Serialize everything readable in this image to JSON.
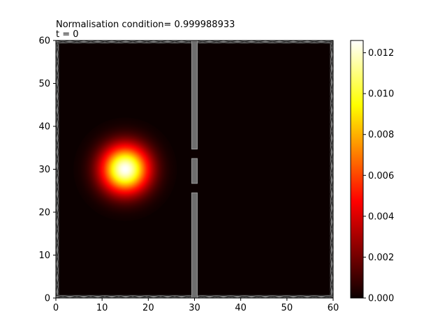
{
  "chart_data": {
    "type": "heatmap",
    "title_line1": "Normalisation condition= 0.999988933",
    "title_line2": "t = 0",
    "xlim": [
      0,
      60
    ],
    "ylim": [
      0,
      60
    ],
    "x_ticks": [
      0,
      10,
      20,
      30,
      40,
      50,
      60
    ],
    "y_ticks": [
      0,
      10,
      20,
      30,
      40,
      50,
      60
    ],
    "x_tick_labels": [
      "0",
      "10",
      "20",
      "30",
      "40",
      "50",
      "60"
    ],
    "y_tick_labels": [
      "0",
      "10",
      "20",
      "30",
      "40",
      "50",
      "60"
    ],
    "colormap": "hot",
    "grid": false,
    "packet": {
      "center_x": 15,
      "center_y": 30,
      "sigma": 3.5,
      "peak": 0.0126
    },
    "walls": [
      {
        "name": "wall-left",
        "x0": 0,
        "x1": 0.6,
        "y0": 0,
        "y1": 60
      },
      {
        "name": "wall-right",
        "x0": 59.4,
        "x1": 60,
        "y0": 0,
        "y1": 60
      },
      {
        "name": "wall-bottom",
        "x0": 0,
        "x1": 60,
        "y0": 0,
        "y1": 0.6
      },
      {
        "name": "wall-top",
        "x0": 0,
        "x1": 60,
        "y0": 59.4,
        "y1": 60
      },
      {
        "name": "barrier-lower",
        "x0": 29.4,
        "x1": 30.6,
        "y0": 0,
        "y1": 24.5
      },
      {
        "name": "barrier-middle",
        "x0": 29.4,
        "x1": 30.6,
        "y0": 26.7,
        "y1": 32.5
      },
      {
        "name": "barrier-upper",
        "x0": 29.4,
        "x1": 30.6,
        "y0": 34.7,
        "y1": 60
      }
    ],
    "colorbar": {
      "min": 0,
      "max": 0.0126,
      "ticks": [
        0,
        0.002,
        0.004,
        0.006,
        0.008,
        0.01,
        0.012
      ],
      "tick_labels": [
        "0.000",
        "0.002",
        "0.004",
        "0.006",
        "0.008",
        "0.010",
        "0.012"
      ]
    },
    "colors": {
      "wall": "#808080",
      "barrier_fill": "#6e6e6e",
      "barrier_edge": "#9a9a9a"
    }
  }
}
